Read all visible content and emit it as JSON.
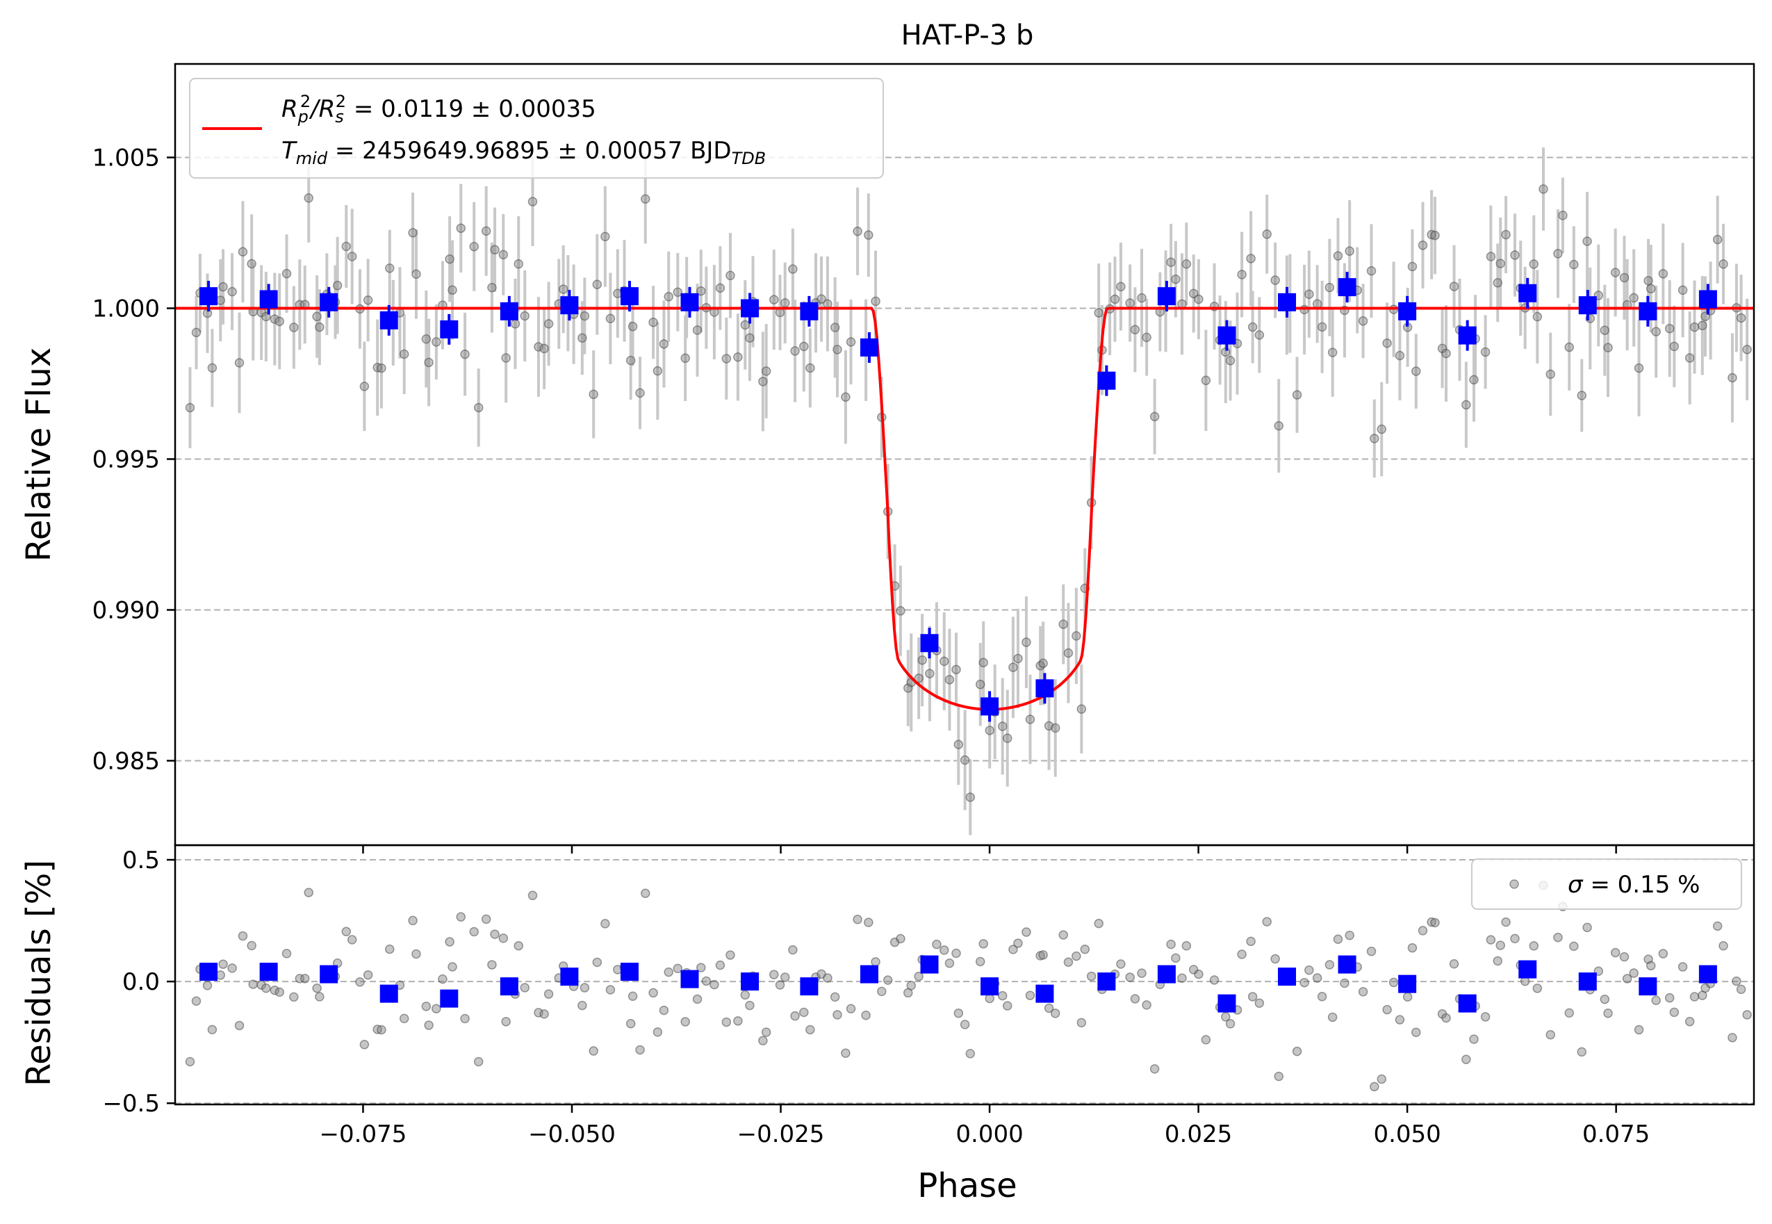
{
  "chart_data": [
    {
      "type": "scatter",
      "panel": "main",
      "title": "HAT-P-3 b",
      "xlabel": "",
      "ylabel": "Relative Flux",
      "xlim": [
        -0.0975,
        0.0915
      ],
      "ylim": [
        0.9822,
        1.0081
      ],
      "x_ticks": [
        -0.075,
        -0.05,
        -0.025,
        0.0,
        0.025,
        0.05,
        0.075
      ],
      "y_ticks": [
        0.985,
        0.99,
        0.995,
        1.0,
        1.005
      ],
      "y_tick_labels": [
        "0.985",
        "0.990",
        "0.995",
        "1.000",
        "1.005"
      ],
      "grid": "horizontal dashed",
      "legend": {
        "position": "top-left",
        "line_1": {
          "prefix": "R",
          "sub_a": "p",
          "sup_a": "2",
          "sep": "/R",
          "sub_b": "s",
          "sup_b": "2",
          "value": " = 0.0119 ± 0.00035"
        },
        "line_2": {
          "prefix": "T",
          "sub": "mid",
          "value": " = 2459649.96895 ± 0.00057 BJD",
          "unit_sub": "TDB"
        }
      },
      "series": [
        {
          "role": "raw photometry",
          "color": "#808080",
          "marker": "circle",
          "errorbar": true
        },
        {
          "role": "binned",
          "color": "#0000ff",
          "marker": "square",
          "x": [
            -0.0935,
            -0.0863,
            -0.0791,
            -0.0719,
            -0.0647,
            -0.0575,
            -0.0503,
            -0.0431,
            -0.0359,
            -0.0287,
            -0.0216,
            -0.0144,
            -0.0072,
            0.0,
            0.0066,
            0.014,
            0.0212,
            0.0284,
            0.0356,
            0.0428,
            0.05,
            0.0572,
            0.0644,
            0.0716,
            0.0788,
            0.086
          ],
          "y": [
            1.0004,
            1.0003,
            1.0002,
            0.9996,
            0.9993,
            0.9999,
            1.0001,
            1.0004,
            1.0002,
            1.0,
            0.9999,
            0.9987,
            0.9889,
            0.9868,
            0.9874,
            0.9976,
            1.0004,
            0.9991,
            1.0002,
            1.0007,
            0.9999,
            0.9991,
            1.0005,
            1.0001,
            0.9999,
            1.0003
          ]
        },
        {
          "role": "transit model",
          "color": "#ff0000",
          "line": true,
          "depth": 0.0133,
          "t14_half": 0.0141
        }
      ]
    },
    {
      "type": "scatter",
      "panel": "residuals",
      "xlabel": "Phase",
      "ylabel": "Residuals [%]",
      "xlim": [
        -0.0975,
        0.0915
      ],
      "ylim": [
        -0.505,
        0.56
      ],
      "y_ticks": [
        -0.5,
        0.0,
        0.5
      ],
      "y_tick_labels": [
        "−0.5",
        "0.0",
        "0.5"
      ],
      "x_tick_labels": [
        "−0.075",
        "−0.050",
        "−0.025",
        "0.000",
        "0.025",
        "0.050",
        "0.075"
      ],
      "grid": "horizontal dashed",
      "legend": {
        "position": "top-right",
        "symbol": "σ",
        "value": " = 0.15 %"
      },
      "series": [
        {
          "role": "raw residuals",
          "color": "#808080",
          "marker": "circle",
          "std_percent": 0.15
        },
        {
          "role": "binned residuals",
          "color": "#0000ff",
          "marker": "square",
          "x": [
            -0.0935,
            -0.0863,
            -0.0791,
            -0.0719,
            -0.0647,
            -0.0575,
            -0.0503,
            -0.0431,
            -0.0359,
            -0.0287,
            -0.0216,
            -0.0144,
            -0.0072,
            0.0,
            0.0066,
            0.014,
            0.0212,
            0.0284,
            0.0356,
            0.0428,
            0.05,
            0.0572,
            0.0644,
            0.0716,
            0.0788,
            0.086
          ],
          "y": [
            0.04,
            0.04,
            0.03,
            -0.05,
            -0.07,
            -0.02,
            0.02,
            0.04,
            0.01,
            0.0,
            -0.02,
            0.03,
            0.07,
            -0.02,
            -0.05,
            0.0,
            0.03,
            -0.09,
            0.02,
            0.07,
            -0.01,
            -0.09,
            0.05,
            0.0,
            -0.02,
            0.03
          ]
        }
      ]
    }
  ]
}
